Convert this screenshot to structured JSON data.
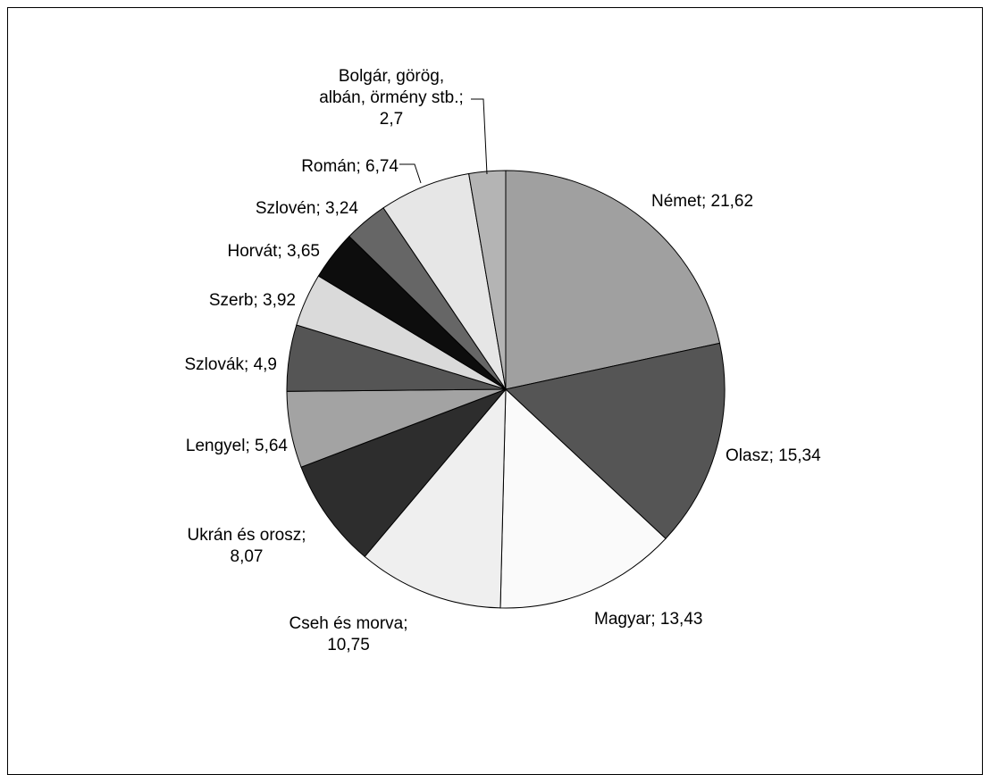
{
  "chart_data": {
    "type": "pie",
    "title": "",
    "slices": [
      {
        "label": "Német",
        "value": 21.62,
        "value_text": "21,62",
        "color": "#a0a0a0"
      },
      {
        "label": "Olasz",
        "value": 15.34,
        "value_text": "15,34",
        "color": "#555555"
      },
      {
        "label": "Magyar",
        "value": 13.43,
        "value_text": "13,43",
        "color": "#fafafa"
      },
      {
        "label": "Cseh és morva",
        "value": 10.75,
        "value_text": "10,75",
        "color": "#efefef"
      },
      {
        "label": "Ukrán és orosz",
        "value": 8.07,
        "value_text": "8,07",
        "color": "#2d2d2d"
      },
      {
        "label": "Lengyel",
        "value": 5.64,
        "value_text": "5,64",
        "color": "#a3a3a3"
      },
      {
        "label": "Szlovák",
        "value": 4.9,
        "value_text": "4,9",
        "color": "#555555"
      },
      {
        "label": "Szerb",
        "value": 3.92,
        "value_text": "3,92",
        "color": "#dadada"
      },
      {
        "label": "Horvát",
        "value": 3.65,
        "value_text": "3,65",
        "color": "#0d0d0d"
      },
      {
        "label": "Szlovén",
        "value": 3.24,
        "value_text": "3,24",
        "color": "#666666"
      },
      {
        "label": "Román",
        "value": 6.74,
        "value_text": "6,74",
        "color": "#e6e6e6"
      },
      {
        "label": "Bolgár, görög, albán, örmény stb.",
        "value": 2.7,
        "value_text": "2,7",
        "color": "#b4b4b4"
      }
    ],
    "data_labels": [
      {
        "lines": [
          "Német; 21,62"
        ]
      },
      {
        "lines": [
          "Olasz; 15,34"
        ]
      },
      {
        "lines": [
          "Magyar; 13,43"
        ]
      },
      {
        "lines": [
          "Cseh és morva;",
          "10,75"
        ]
      },
      {
        "lines": [
          "Ukrán és orosz;",
          "8,07"
        ]
      },
      {
        "lines": [
          "Lengyel; 5,64"
        ]
      },
      {
        "lines": [
          "Szlovák; 4,9"
        ]
      },
      {
        "lines": [
          "Szerb; 3,92"
        ]
      },
      {
        "lines": [
          "Horvát; 3,65"
        ]
      },
      {
        "lines": [
          "Szlovén; 3,24"
        ]
      },
      {
        "lines": [
          "Román; 6,74"
        ]
      },
      {
        "lines": [
          "Bolgár, görög,",
          "albán, örmény stb.;",
          "2,7"
        ]
      }
    ],
    "legend": "none",
    "start": "top, clockwise"
  }
}
